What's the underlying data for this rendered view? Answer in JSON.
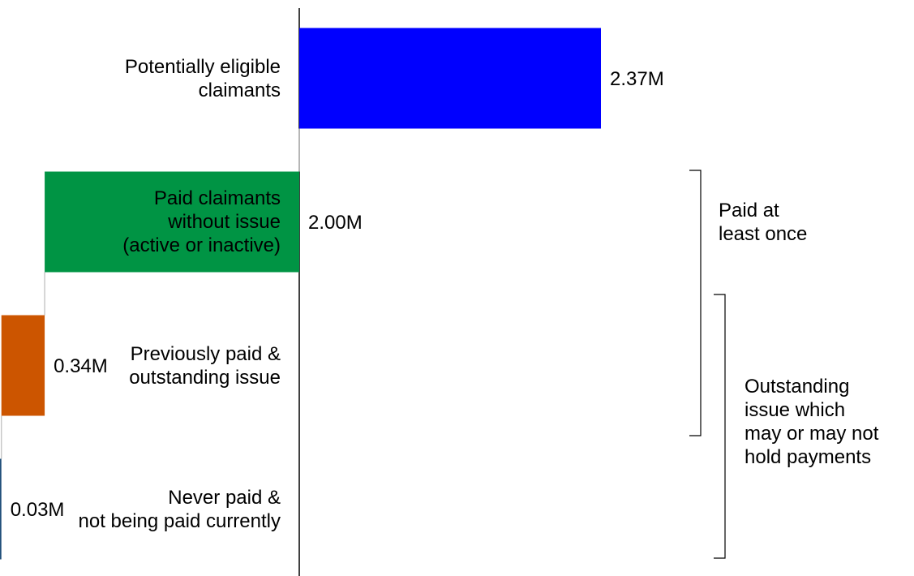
{
  "chart_data": {
    "type": "waterfall",
    "categories": [
      "Potentially eligible\nclaimants",
      "Paid claimants \nwithout issue \n(active or inactive)",
      "Previously paid &\noutstanding issue",
      "Never paid & \nnot being paid currently"
    ],
    "values": [
      2.37,
      2.0,
      0.34,
      0.03
    ],
    "value_labels": [
      "2.37M",
      "2.00M",
      "0.34M",
      "0.03M"
    ],
    "colors": [
      "#0000ff",
      "#009444",
      "#cc5500",
      "#1f4e79"
    ],
    "annotations": [
      "Paid at\nleast once",
      "Outstanding\nissue which\nmay or may not\nhold payments"
    ]
  }
}
